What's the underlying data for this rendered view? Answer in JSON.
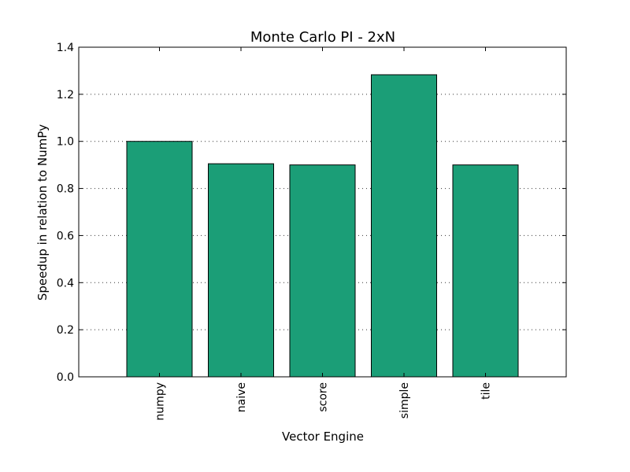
{
  "chart_data": {
    "type": "bar",
    "title": "Monte Carlo PI - 2xN",
    "xlabel": "Vector Engine",
    "ylabel": "Speedup in relation to NumPy",
    "categories": [
      "numpy",
      "naive",
      "score",
      "simple",
      "tile"
    ],
    "values": [
      1.0,
      0.905,
      0.9,
      1.283,
      0.9
    ],
    "ylim": [
      0,
      1.4
    ],
    "yticks": [
      "0.0",
      "0.2",
      "0.4",
      "0.6",
      "0.8",
      "1.0",
      "1.2",
      "1.4"
    ],
    "grid": "horizontal-dotted",
    "bar_color": "#1b9e77",
    "legend": "none"
  }
}
